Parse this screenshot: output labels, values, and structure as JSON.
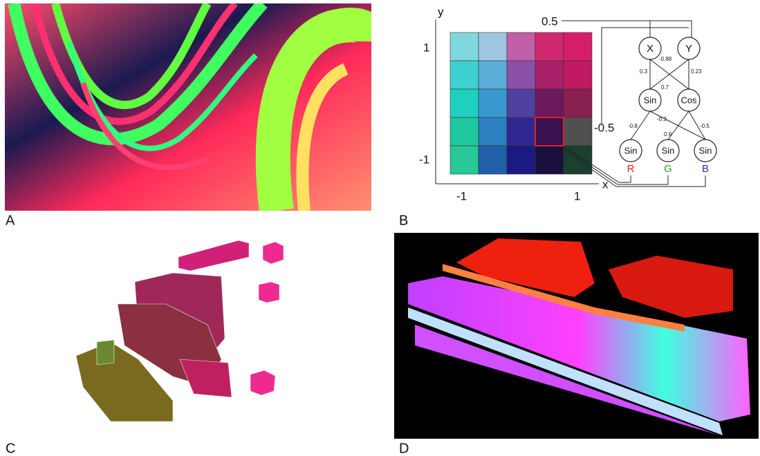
{
  "panels": {
    "a": {
      "label": "A"
    },
    "b": {
      "label": "B"
    },
    "c": {
      "label": "C"
    },
    "d": {
      "label": "D"
    }
  },
  "panel_b": {
    "axes": {
      "y_label": "y",
      "x_label": "x",
      "y_ticks": [
        "1",
        "-1"
      ],
      "x_ticks": [
        "-1",
        "1"
      ]
    },
    "inputs": [
      "0.5",
      "-0.5"
    ],
    "nodes": [
      {
        "label": "X"
      },
      {
        "label": "Y"
      },
      {
        "label": "Sin"
      },
      {
        "label": "Cos"
      },
      {
        "label": "Sin"
      },
      {
        "label": "Sin"
      },
      {
        "label": "Sin"
      }
    ],
    "edge_weights": [
      "-0.88",
      "0.3",
      "0.23",
      "0.7",
      "-0.3",
      "-0.8",
      "0.9",
      "-0.5"
    ],
    "outputs": [
      "R",
      "G",
      "B"
    ]
  }
}
